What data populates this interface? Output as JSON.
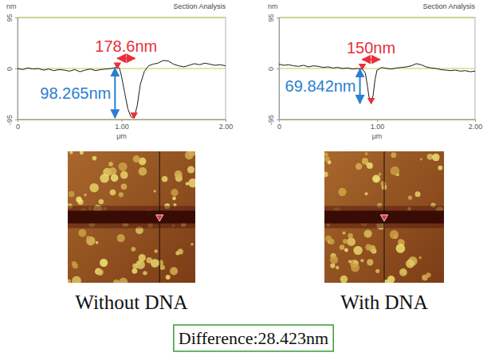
{
  "chart_data": [
    {
      "type": "line",
      "title": "Section Analysis",
      "xlabel": "μm",
      "ylabel": "nm",
      "x": [
        0,
        0.05,
        0.1,
        0.15,
        0.2,
        0.25,
        0.3,
        0.35,
        0.4,
        0.45,
        0.5,
        0.55,
        0.6,
        0.65,
        0.7,
        0.75,
        0.8,
        0.85,
        0.9,
        0.95,
        0.98,
        1.0,
        1.03,
        1.06,
        1.09,
        1.12,
        1.15,
        1.18,
        1.22,
        1.26,
        1.3,
        1.35,
        1.4,
        1.45,
        1.5,
        1.55,
        1.6,
        1.65,
        1.7,
        1.75,
        1.8,
        1.85,
        1.9,
        1.95,
        2.0
      ],
      "values": [
        0,
        -2,
        1,
        -1,
        0,
        -3,
        -1,
        -4,
        -2,
        -3,
        -5,
        -2,
        -6,
        -3,
        -1,
        -4,
        -2,
        -1,
        0,
        2,
        1,
        -15,
        -45,
        -75,
        -90,
        -92,
        -70,
        -30,
        -5,
        5,
        8,
        10,
        15,
        14,
        8,
        5,
        3,
        6,
        9,
        7,
        10,
        8,
        6,
        7,
        5
      ],
      "color": "#1a1a1a",
      "xlim": [
        0,
        2
      ],
      "xticks": [
        0,
        {
          "value": 1,
          "label": "1.00"
        },
        {
          "value": 2,
          "label": "2.00"
        }
      ],
      "ylim": [
        -95,
        95
      ],
      "yticks": [
        -95,
        0,
        95
      ],
      "grid": true,
      "cursors": {
        "x": [
          0.96,
          1.12
        ],
        "y": [
          1,
          -92
        ]
      },
      "annotations": [
        "178.6nm",
        "98.265nm"
      ]
    },
    {
      "type": "line",
      "title": "Section Analysis",
      "xlabel": "μm",
      "ylabel": "nm",
      "x": [
        0,
        0.05,
        0.1,
        0.15,
        0.2,
        0.25,
        0.3,
        0.35,
        0.4,
        0.45,
        0.5,
        0.55,
        0.6,
        0.65,
        0.7,
        0.75,
        0.8,
        0.85,
        0.88,
        0.9,
        0.92,
        0.94,
        0.96,
        0.98,
        1.0,
        1.05,
        1.1,
        1.15,
        1.2,
        1.25,
        1.3,
        1.35,
        1.4,
        1.45,
        1.5,
        1.55,
        1.6,
        1.65,
        1.7,
        1.75,
        1.8,
        1.85,
        1.9,
        1.95,
        2.0
      ],
      "values": [
        8,
        6,
        7,
        5,
        4,
        6,
        3,
        5,
        4,
        2,
        3,
        1,
        2,
        0,
        1,
        -1,
        0,
        -1,
        -8,
        -30,
        -55,
        -65,
        -50,
        -20,
        -3,
        2,
        0,
        -1,
        1,
        2,
        3,
        5,
        9,
        7,
        3,
        1,
        0,
        -2,
        -3,
        -4,
        -3,
        -5,
        -4,
        -6,
        -5
      ],
      "color": "#1a1a1a",
      "xlim": [
        0,
        2
      ],
      "xticks": [
        0,
        {
          "value": 1,
          "label": "1.00"
        },
        {
          "value": 2,
          "label": "2.00"
        }
      ],
      "ylim": [
        -95,
        95
      ],
      "yticks": [
        -95,
        0,
        95
      ],
      "grid": true,
      "cursors": {
        "x": [
          0.85,
          0.94
        ],
        "y": [
          -1,
          -65
        ]
      },
      "annotations": [
        "150nm",
        "69.842nm"
      ]
    }
  ],
  "figure": {
    "captions": [
      "Without DNA",
      "With DNA"
    ],
    "difference": "Difference:28.423nm"
  }
}
